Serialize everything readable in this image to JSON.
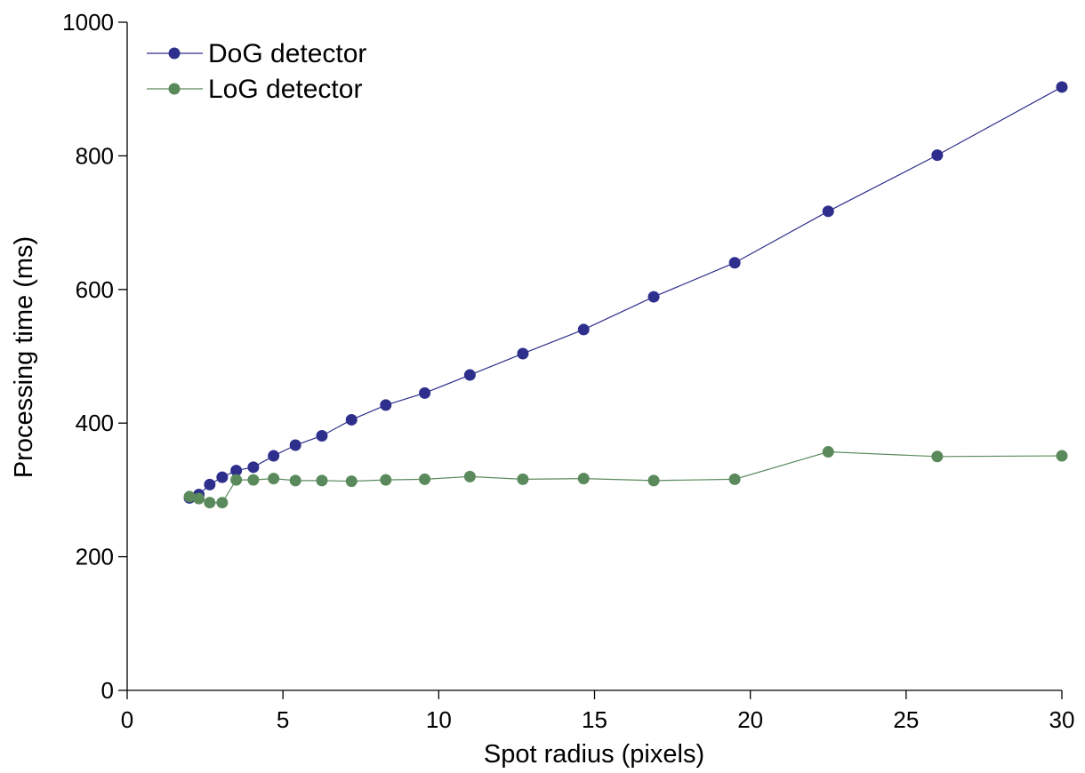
{
  "chart_data": {
    "type": "line",
    "title": "",
    "xlabel": "Spot radius (pixels)",
    "ylabel": "Processing time (ms)",
    "xlim": [
      0,
      30
    ],
    "ylim": [
      0,
      1000
    ],
    "xticks": [
      0,
      5,
      10,
      15,
      20,
      25,
      30
    ],
    "yticks": [
      0,
      200,
      400,
      600,
      800,
      1000
    ],
    "grid": false,
    "legend_position": "top-left",
    "series": [
      {
        "name": "DoG detector",
        "color": "#2e2f8c",
        "x": [
          2.0,
          2.3,
          2.65,
          3.05,
          3.5,
          4.05,
          4.7,
          5.4,
          6.25,
          7.2,
          8.3,
          9.55,
          11.0,
          12.7,
          14.65,
          16.9,
          19.5,
          22.5,
          26.0,
          30.0
        ],
        "y": [
          288,
          293,
          308,
          319,
          329,
          334,
          351,
          367,
          381,
          405,
          427,
          445,
          472,
          504,
          540,
          589,
          640,
          717,
          801,
          903
        ]
      },
      {
        "name": "LoG detector",
        "color": "#5a8a5c",
        "x": [
          2.0,
          2.3,
          2.65,
          3.05,
          3.5,
          4.05,
          4.7,
          5.4,
          6.25,
          7.2,
          8.3,
          9.55,
          11.0,
          12.7,
          14.65,
          16.9,
          19.5,
          22.5,
          26.0,
          30.0
        ],
        "y": [
          290,
          287,
          281,
          281,
          315,
          315,
          317,
          314,
          314,
          313,
          315,
          316,
          320,
          316,
          317,
          314,
          316,
          357,
          350,
          351
        ]
      }
    ]
  }
}
